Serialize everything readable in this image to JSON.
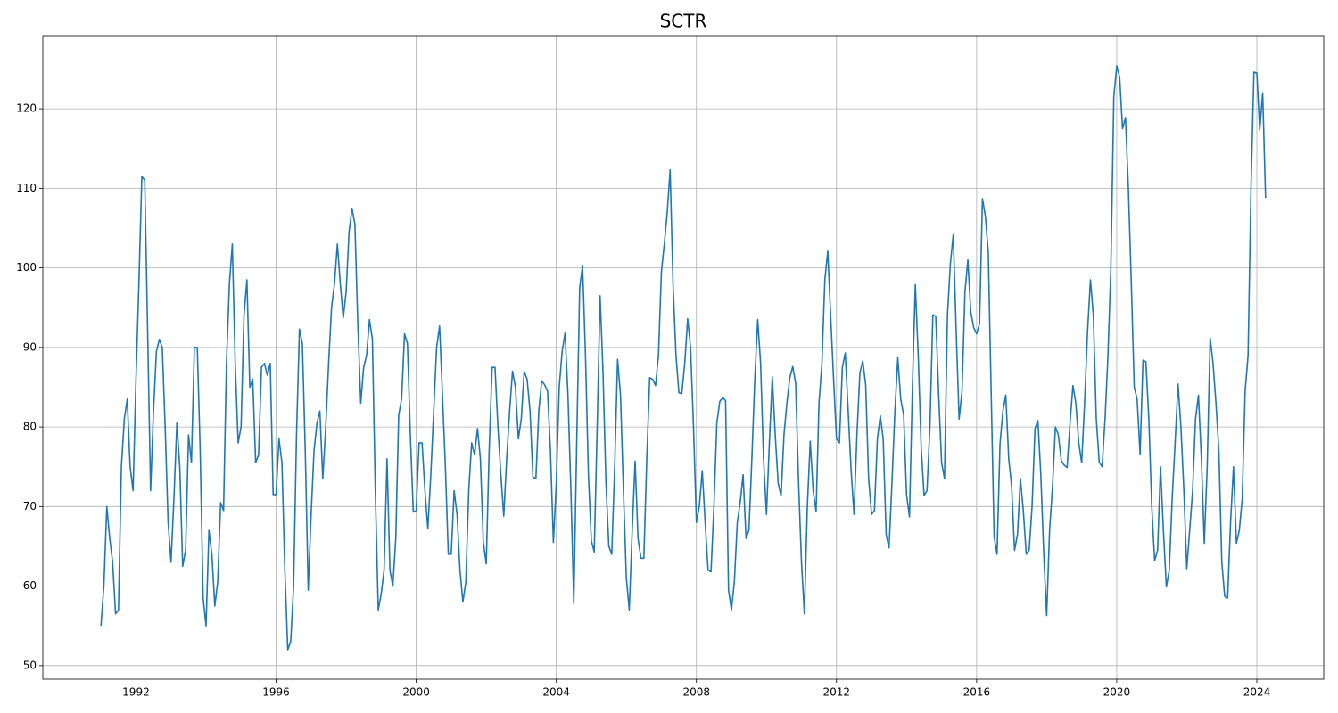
{
  "chart_data": {
    "type": "line",
    "title": "SCTR",
    "color": "#1f77b4",
    "grid": true,
    "xlim": [
      1989.34,
      2025.91
    ],
    "xticks": [
      1992,
      1996,
      2000,
      2004,
      2008,
      2012,
      2016,
      2020,
      2024
    ],
    "ylim": [
      48.3,
      129.2
    ],
    "yticks": [
      50,
      60,
      70,
      80,
      90,
      100,
      110,
      120
    ],
    "x": [
      1991,
      1991.083,
      1991.167,
      1991.25,
      1991.333,
      1991.417,
      1991.5,
      1991.583,
      1991.667,
      1991.75,
      1991.833,
      1991.917,
      1992,
      1992.083,
      1992.167,
      1992.25,
      1992.333,
      1992.417,
      1992.5,
      1992.583,
      1992.667,
      1992.75,
      1992.833,
      1992.917,
      1993,
      1993.083,
      1993.167,
      1993.25,
      1993.333,
      1993.417,
      1993.5,
      1993.583,
      1993.667,
      1993.75,
      1993.833,
      1993.917,
      1994,
      1994.083,
      1994.167,
      1994.25,
      1994.333,
      1994.417,
      1994.5,
      1994.583,
      1994.667,
      1994.75,
      1994.833,
      1994.917,
      1995,
      1995.083,
      1995.167,
      1995.25,
      1995.333,
      1995.417,
      1995.5,
      1995.583,
      1995.667,
      1995.75,
      1995.833,
      1995.917,
      1996,
      1996.083,
      1996.167,
      1996.25,
      1996.333,
      1996.417,
      1996.5,
      1996.583,
      1996.667,
      1996.75,
      1996.833,
      1996.917,
      1997,
      1997.083,
      1997.167,
      1997.25,
      1997.333,
      1997.417,
      1997.5,
      1997.583,
      1997.667,
      1997.75,
      1997.833,
      1997.917,
      1998,
      1998.083,
      1998.167,
      1998.25,
      1998.333,
      1998.417,
      1998.5,
      1998.583,
      1998.667,
      1998.75,
      1998.833,
      1998.917,
      1999,
      1999.083,
      1999.167,
      1999.25,
      1999.333,
      1999.417,
      1999.5,
      1999.583,
      1999.667,
      1999.75,
      1999.833,
      1999.917,
      2000,
      2000.083,
      2000.167,
      2000.25,
      2000.333,
      2000.417,
      2000.5,
      2000.583,
      2000.667,
      2000.75,
      2000.833,
      2000.917,
      2001,
      2001.083,
      2001.167,
      2001.25,
      2001.333,
      2001.417,
      2001.5,
      2001.583,
      2001.667,
      2001.75,
      2001.833,
      2001.917,
      2002,
      2002.083,
      2002.167,
      2002.25,
      2002.333,
      2002.417,
      2002.5,
      2002.583,
      2002.667,
      2002.75,
      2002.833,
      2002.917,
      2003,
      2003.083,
      2003.167,
      2003.25,
      2003.333,
      2003.417,
      2003.5,
      2003.583,
      2003.667,
      2003.75,
      2003.833,
      2003.917,
      2004,
      2004.083,
      2004.167,
      2004.25,
      2004.333,
      2004.417,
      2004.5,
      2004.583,
      2004.667,
      2004.75,
      2004.833,
      2004.917,
      2005,
      2005.083,
      2005.167,
      2005.25,
      2005.333,
      2005.417,
      2005.5,
      2005.583,
      2005.667,
      2005.75,
      2005.833,
      2005.917,
      2006,
      2006.083,
      2006.167,
      2006.25,
      2006.333,
      2006.417,
      2006.5,
      2006.583,
      2006.667,
      2006.75,
      2006.833,
      2006.917,
      2007,
      2007.083,
      2007.167,
      2007.25,
      2007.333,
      2007.417,
      2007.5,
      2007.583,
      2007.667,
      2007.75,
      2007.833,
      2007.917,
      2008,
      2008.083,
      2008.167,
      2008.25,
      2008.333,
      2008.417,
      2008.5,
      2008.583,
      2008.667,
      2008.75,
      2008.833,
      2008.917,
      2009,
      2009.083,
      2009.167,
      2009.25,
      2009.333,
      2009.417,
      2009.5,
      2009.583,
      2009.667,
      2009.75,
      2009.833,
      2009.917,
      2010,
      2010.083,
      2010.167,
      2010.25,
      2010.333,
      2010.417,
      2010.5,
      2010.583,
      2010.667,
      2010.75,
      2010.833,
      2010.917,
      2011,
      2011.083,
      2011.167,
      2011.25,
      2011.333,
      2011.417,
      2011.5,
      2011.583,
      2011.667,
      2011.75,
      2011.833,
      2011.917,
      2012,
      2012.083,
      2012.167,
      2012.25,
      2012.333,
      2012.417,
      2012.5,
      2012.583,
      2012.667,
      2012.75,
      2012.833,
      2012.917,
      2013,
      2013.083,
      2013.167,
      2013.25,
      2013.333,
      2013.417,
      2013.5,
      2013.583,
      2013.667,
      2013.75,
      2013.833,
      2013.917,
      2014,
      2014.083,
      2014.167,
      2014.25,
      2014.333,
      2014.417,
      2014.5,
      2014.583,
      2014.667,
      2014.75,
      2014.833,
      2014.917,
      2015,
      2015.083,
      2015.167,
      2015.25,
      2015.333,
      2015.417,
      2015.5,
      2015.583,
      2015.667,
      2015.75,
      2015.833,
      2015.917,
      2016,
      2016.083,
      2016.167,
      2016.25,
      2016.333,
      2016.417,
      2016.5,
      2016.583,
      2016.667,
      2016.75,
      2016.833,
      2016.917,
      2017,
      2017.083,
      2017.167,
      2017.25,
      2017.333,
      2017.417,
      2017.5,
      2017.583,
      2017.667,
      2017.75,
      2017.833,
      2017.917,
      2018,
      2018.083,
      2018.167,
      2018.25,
      2018.333,
      2018.417,
      2018.5,
      2018.583,
      2018.667,
      2018.75,
      2018.833,
      2018.917,
      2019,
      2019.083,
      2019.167,
      2019.25,
      2019.333,
      2019.417,
      2019.5,
      2019.583,
      2019.667,
      2019.75,
      2019.833,
      2019.917,
      2020,
      2020.083,
      2020.167,
      2020.25,
      2020.333,
      2020.417,
      2020.5,
      2020.583,
      2020.667,
      2020.75,
      2020.833,
      2020.917,
      2021,
      2021.083,
      2021.167,
      2021.25,
      2021.333,
      2021.417,
      2021.5,
      2021.583,
      2021.667,
      2021.75,
      2021.833,
      2021.917,
      2022,
      2022.083,
      2022.167,
      2022.25,
      2022.333,
      2022.417,
      2022.5,
      2022.583,
      2022.667,
      2022.75,
      2022.833,
      2022.917,
      2023,
      2023.083,
      2023.167,
      2023.25,
      2023.333,
      2023.417,
      2023.5,
      2023.583,
      2023.667,
      2023.75,
      2023.833,
      2023.917,
      2024,
      2024.083,
      2024.167,
      2024.25
    ],
    "values": [
      55,
      60,
      70,
      66,
      63,
      56.5,
      57,
      75,
      81,
      83.5,
      75,
      72,
      86,
      98,
      111.5,
      111,
      92,
      72,
      82,
      89.5,
      91,
      90,
      80,
      68,
      63,
      71,
      80.5,
      75,
      62.5,
      64.5,
      79,
      75.5,
      90,
      90,
      77,
      58.5,
      55,
      67,
      64,
      57.5,
      60.5,
      70.5,
      69.5,
      88,
      98,
      103,
      88,
      78,
      80,
      94,
      98.5,
      85,
      86,
      75.5,
      76.5,
      87.5,
      88,
      86.5,
      88,
      71.5,
      71.5,
      78.5,
      75.5,
      62,
      52,
      53,
      60,
      79,
      92.3,
      90.5,
      77,
      59.5,
      69,
      77,
      80.5,
      82,
      73.5,
      80,
      88,
      95,
      98,
      103,
      98,
      93.7,
      97,
      104.5,
      107.5,
      105.5,
      93,
      83,
      87.5,
      89,
      93.5,
      91,
      72,
      57,
      59,
      62,
      76,
      62,
      60,
      66,
      81.5,
      83.5,
      91.7,
      90.5,
      79,
      69.3,
      69.5,
      78,
      78,
      72,
      67.2,
      74,
      82,
      90,
      92.7,
      84,
      75,
      64,
      64,
      72,
      69,
      62,
      58,
      60.5,
      72,
      78,
      76.5,
      79.8,
      76,
      65.5,
      62.8,
      77,
      87.5,
      87.5,
      80,
      74,
      68.8,
      76,
      82,
      87,
      85,
      78.5,
      81,
      87,
      86,
      82,
      73.7,
      73.5,
      82,
      85.8,
      85.3,
      84.5,
      77,
      65.5,
      73,
      85,
      89.5,
      91.8,
      84,
      72,
      57.8,
      78,
      97.5,
      100.3,
      89,
      74,
      65.7,
      64.3,
      80,
      96.5,
      87,
      73,
      65,
      64,
      75,
      88.5,
      84,
      72,
      61,
      57,
      67,
      75.7,
      66,
      63.5,
      63.5,
      76,
      86.2,
      86,
      85.2,
      89,
      99.5,
      103,
      107,
      112.3,
      98,
      89,
      84.3,
      84.2,
      88,
      93.6,
      90,
      80,
      68,
      70,
      74.5,
      68,
      62,
      61.8,
      70,
      80.5,
      83.2,
      83.7,
      83.3,
      59.5,
      57,
      60.5,
      68,
      70.5,
      74,
      66,
      67,
      76,
      86,
      93.5,
      88,
      76,
      69,
      78,
      86.3,
      79,
      73,
      71.3,
      79,
      83,
      86.2,
      87.6,
      85.5,
      73,
      63,
      56.5,
      70,
      78.2,
      72,
      69.4,
      83,
      88,
      98.5,
      102.1,
      94,
      86,
      78.5,
      78,
      87.5,
      89.3,
      82,
      74.5,
      69,
      79,
      86.8,
      88.3,
      85.3,
      73.5,
      69,
      69.5,
      78.5,
      81.4,
      78.5,
      66.5,
      64.8,
      73,
      82,
      88.7,
      83.5,
      81.5,
      71.5,
      68.7,
      85,
      97.9,
      89,
      77.5,
      71.4,
      72,
      80,
      94.1,
      93.9,
      84,
      75.5,
      73.5,
      94,
      100.5,
      104.2,
      92,
      81,
      84.5,
      97,
      101,
      94.5,
      92.5,
      91.7,
      93,
      108.7,
      106.5,
      102,
      84,
      66.2,
      64,
      77.8,
      82,
      84,
      76,
      72.5,
      64.5,
      66.5,
      73.5,
      69.5,
      64,
      64.5,
      70,
      79.8,
      80.8,
      74,
      64,
      56.3,
      67,
      72.5,
      80,
      79,
      75.8,
      75.2,
      74.9,
      80.5,
      85.2,
      83,
      78,
      75.5,
      83,
      92,
      98.5,
      94,
      81,
      75.6,
      75,
      81,
      89,
      100,
      121.5,
      125.4,
      124,
      117.5,
      118.9,
      110,
      98,
      85,
      83.5,
      76.6,
      88.4,
      88.2,
      81,
      70,
      63.2,
      64.5,
      75,
      67,
      59.9,
      62,
      71,
      78,
      85.4,
      80,
      72,
      62.2,
      67,
      72,
      81,
      84,
      76,
      65.4,
      75,
      91.2,
      88,
      83,
      77,
      63,
      58.7,
      58.5,
      68,
      75,
      65.4,
      67,
      71,
      84.6,
      89,
      110,
      124.6,
      124.5,
      117.3,
      122,
      108.8
    ]
  }
}
